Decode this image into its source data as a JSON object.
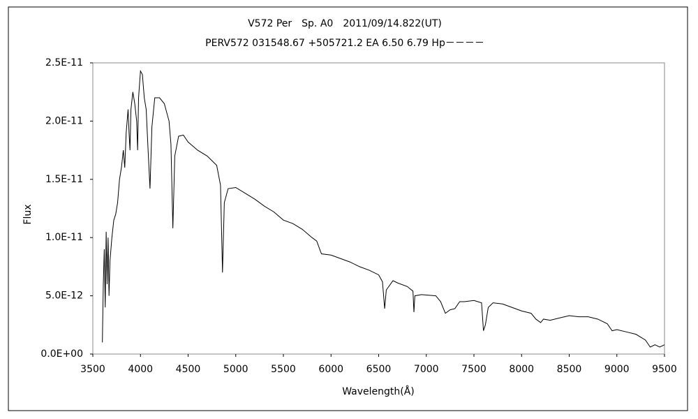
{
  "chart_data": {
    "type": "line",
    "title": "V572 Per　Sp. A0　2011/09/14.822(UT)",
    "subtitle": "PERV572 031548.67 +505721.2 EA 6.50 6.79 Hp－－－－",
    "x_label": "Wavelength(Å)",
    "y_label": "Flux",
    "color": "#000000",
    "grid": false,
    "xlim": [
      3500,
      9500
    ],
    "xticks": [
      3500,
      4000,
      4500,
      5000,
      5500,
      6000,
      6500,
      7000,
      7500,
      8000,
      8500,
      9000,
      9500
    ],
    "ylim": [
      0,
      2.5e-11
    ],
    "yticks": [
      {
        "value": 0,
        "label": "0.0E+00"
      },
      {
        "value": 5e-12,
        "label": "5.0E-12"
      },
      {
        "value": 1e-11,
        "label": "1.0E-11"
      },
      {
        "value": 1.5e-11,
        "label": "1.5E-11"
      },
      {
        "value": 2e-11,
        "label": "2.0E-11"
      },
      {
        "value": 2.5e-11,
        "label": "2.5E-11"
      }
    ],
    "x": [
      3600,
      3610,
      3620,
      3630,
      3640,
      3650,
      3660,
      3670,
      3680,
      3700,
      3720,
      3740,
      3760,
      3780,
      3800,
      3820,
      3835,
      3850,
      3870,
      3880,
      3890,
      3900,
      3920,
      3940,
      3960,
      3970,
      3980,
      4000,
      4020,
      4040,
      4060,
      4080,
      4100,
      4120,
      4150,
      4200,
      4250,
      4300,
      4320,
      4340,
      4360,
      4400,
      4450,
      4500,
      4600,
      4700,
      4800,
      4840,
      4861,
      4880,
      4920,
      5000,
      5100,
      5200,
      5300,
      5400,
      5500,
      5600,
      5700,
      5800,
      5850,
      5890,
      5900,
      6000,
      6100,
      6200,
      6300,
      6400,
      6500,
      6540,
      6563,
      6580,
      6650,
      6700,
      6800,
      6860,
      6870,
      6880,
      6950,
      7100,
      7150,
      7200,
      7250,
      7300,
      7350,
      7400,
      7500,
      7580,
      7600,
      7620,
      7650,
      7700,
      7800,
      7900,
      8000,
      8100,
      8150,
      8200,
      8230,
      8300,
      8400,
      8500,
      8600,
      8700,
      8800,
      8900,
      8950,
      9000,
      9100,
      9200,
      9300,
      9350,
      9400,
      9450,
      9500
    ],
    "values": [
      1e-12,
      6e-12,
      9e-12,
      4e-12,
      1.05e-11,
      6e-12,
      1e-11,
      5e-12,
      8e-12,
      1e-11,
      1.15e-11,
      1.2e-11,
      1.3e-11,
      1.5e-11,
      1.6e-11,
      1.75e-11,
      1.6e-11,
      1.9e-11,
      2.1e-11,
      1.9e-11,
      1.75e-11,
      2.1e-11,
      2.25e-11,
      2.15e-11,
      2e-11,
      1.75e-11,
      2.2e-11,
      2.43e-11,
      2.4e-11,
      2.2e-11,
      2.1e-11,
      1.75e-11,
      1.42e-11,
      1.95e-11,
      2.2e-11,
      2.2e-11,
      2.15e-11,
      2e-11,
      1.8e-11,
      1.08e-11,
      1.7e-11,
      1.87e-11,
      1.88e-11,
      1.82e-11,
      1.75e-11,
      1.7e-11,
      1.62e-11,
      1.45e-11,
      7e-12,
      1.3e-11,
      1.42e-11,
      1.43e-11,
      1.38e-11,
      1.33e-11,
      1.27e-11,
      1.22e-11,
      1.15e-11,
      1.12e-11,
      1.07e-11,
      1e-11,
      9.7e-12,
      8.8e-12,
      8.6e-12,
      8.5e-12,
      8.2e-12,
      7.9e-12,
      7.5e-12,
      7.2e-12,
      6.8e-12,
      6.2e-12,
      3.9e-12,
      5.5e-12,
      6.3e-12,
      6.1e-12,
      5.8e-12,
      5.4e-12,
      3.6e-12,
      5e-12,
      5.1e-12,
      5e-12,
      4.5e-12,
      3.5e-12,
      3.8e-12,
      3.9e-12,
      4.5e-12,
      4.5e-12,
      4.6e-12,
      4.4e-12,
      2e-12,
      2.5e-12,
      4e-12,
      4.4e-12,
      4.3e-12,
      4e-12,
      3.7e-12,
      3.5e-12,
      3e-12,
      2.7e-12,
      3e-12,
      2.9e-12,
      3.1e-12,
      3.3e-12,
      3.2e-12,
      3.2e-12,
      3e-12,
      2.6e-12,
      2e-12,
      2.1e-12,
      1.9e-12,
      1.7e-12,
      1.2e-12,
      6e-13,
      8e-13,
      6e-13,
      8e-13
    ]
  }
}
